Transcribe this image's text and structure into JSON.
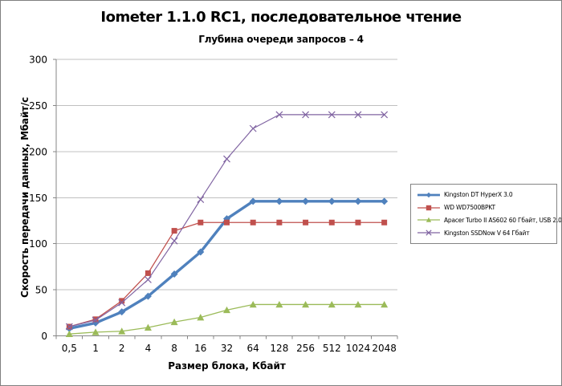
{
  "title": "Iometer 1.1.0 RC1, последовательное чтение",
  "subtitle": "Глубина очереди запросов – 4",
  "chart_data": {
    "type": "line",
    "title": "Iometer 1.1.0 RC1, последовательное чтение",
    "subtitle": "Глубина очереди запросов – 4",
    "xlabel": "Размер блока, Кбайт",
    "ylabel": "Скорость передачи данных, Мбайт/с",
    "categories": [
      "0,5",
      "1",
      "2",
      "4",
      "8",
      "16",
      "32",
      "64",
      "128",
      "256",
      "512",
      "1024",
      "2048"
    ],
    "ylim": [
      0,
      300
    ],
    "yticks": [
      0,
      50,
      100,
      150,
      200,
      250,
      300
    ],
    "grid": true,
    "legend_position": "right",
    "series": [
      {
        "name": "Kingston DT HyperX 3.0",
        "color": "#4F81BD",
        "marker": "diamond",
        "line_width": 3.4,
        "values": [
          8,
          14,
          26,
          43,
          67,
          91,
          127,
          146,
          146,
          146,
          146,
          146,
          146
        ]
      },
      {
        "name": "WD WD7500BPKT",
        "color": "#C0504D",
        "marker": "square",
        "line_width": 1.3,
        "values": [
          10,
          18,
          38,
          68,
          114,
          123,
          123,
          123,
          123,
          123,
          123,
          123,
          123
        ]
      },
      {
        "name": "Apacer Turbo II AS602 60 Гбайт, USB 2.0",
        "color": "#9BBB59",
        "marker": "triangle",
        "line_width": 1.3,
        "values": [
          2,
          4,
          5,
          9,
          15,
          20,
          28,
          34,
          34,
          34,
          34,
          34,
          34
        ]
      },
      {
        "name": "Kingston SSDNow V 64 Гбайт",
        "color": "#8064A2",
        "marker": "x",
        "line_width": 1.2,
        "values": [
          10,
          17,
          36,
          61,
          103,
          148,
          192,
          225,
          240,
          240,
          240,
          240,
          240
        ]
      }
    ]
  },
  "style_colors": {
    "gridline": "#C0C0C0",
    "axis": "#868686",
    "legend_border": "#848484",
    "page_border": "#7F7F7F"
  }
}
